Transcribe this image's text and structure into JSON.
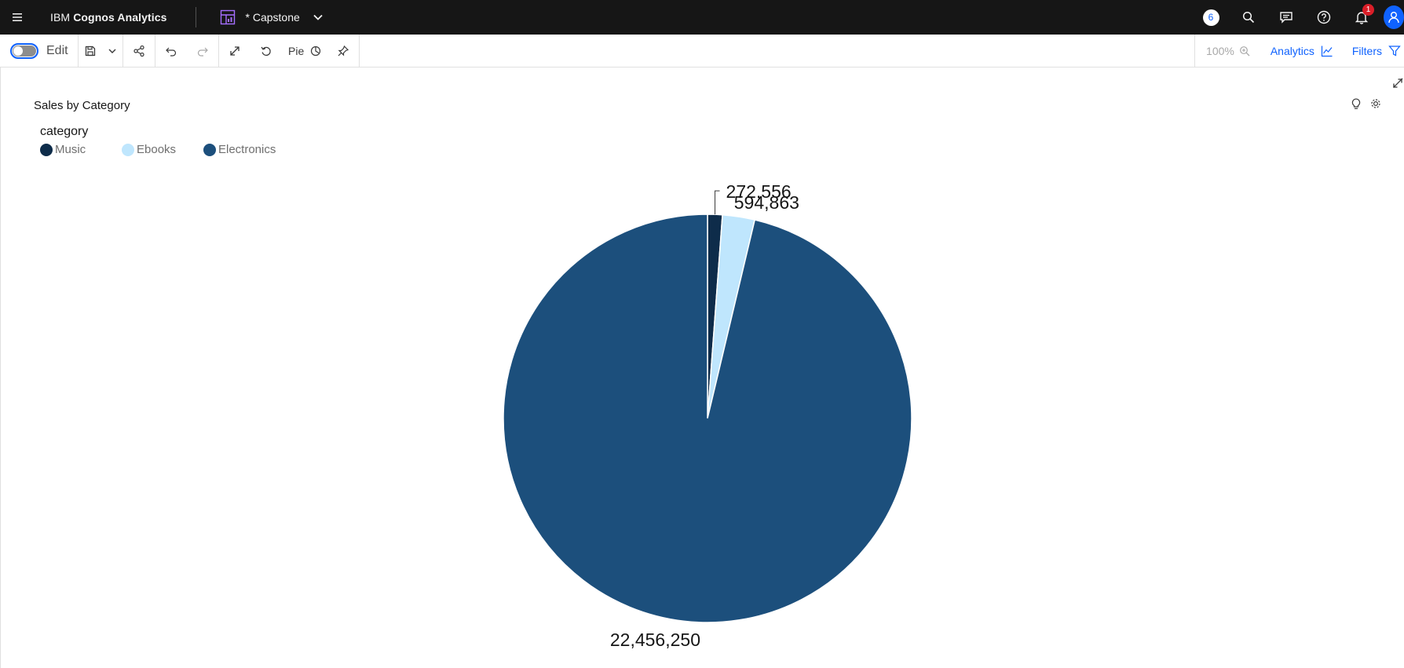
{
  "app": {
    "brand_prefix": "IBM ",
    "brand_name": "Cognos Analytics",
    "dashboard_title": "* Capstone",
    "colors": {
      "topbar": "#161616",
      "accent": "#0f62fe",
      "badge": "#da1e28"
    }
  },
  "header_actions": {
    "comments_count": "6",
    "notifications_count": "1",
    "icons": [
      "menu-icon",
      "dashboard-icon",
      "chevron-down-icon",
      "search-icon",
      "chat-icon",
      "help-icon",
      "notification-icon",
      "user-icon"
    ]
  },
  "toolbar": {
    "edit_label": "Edit",
    "edit_mode_on": false,
    "viz_type_label": "Pie",
    "zoom_label": "100%",
    "analytics_label": "Analytics",
    "filters_label": "Filters"
  },
  "widget": {
    "title": "Sales by Category",
    "legend_title": "category"
  },
  "chart_data": {
    "type": "pie",
    "title": "Sales by Category",
    "legend_title": "category",
    "legend_position": "top-left",
    "categories": [
      "Music",
      "Ebooks",
      "Electronics"
    ],
    "values": [
      272556,
      594863,
      22456250
    ],
    "labels": [
      "272,556",
      "594,863",
      "22,456,250"
    ],
    "colors": [
      "#0e2c4a",
      "#bfe6fd",
      "#1c4f7c"
    ]
  }
}
